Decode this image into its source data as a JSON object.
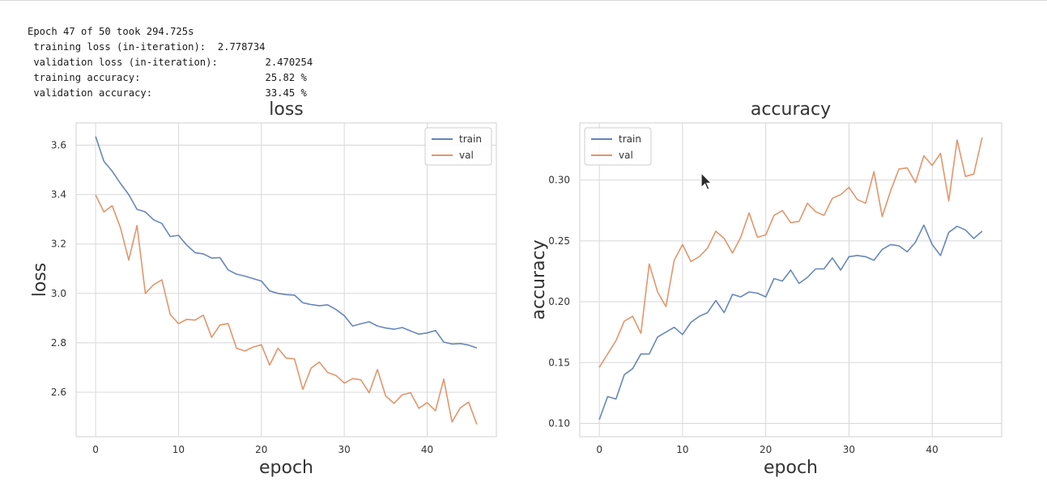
{
  "log": {
    "line1": "Epoch 47 of 50 took 294.725s",
    "line2": " training loss (in-iteration):  2.778734",
    "line3": " validation loss (in-iteration):        2.470254",
    "line4": " training accuracy:                     25.82 %",
    "line5": " validation accuracy:                   33.45 %"
  },
  "chart_data": [
    {
      "type": "line",
      "title": "loss",
      "xlabel": "epoch",
      "ylabel": "loss",
      "xlim": [
        -2.35,
        48.35
      ],
      "ylim": [
        2.42,
        3.69
      ],
      "xticks": [
        0,
        10,
        20,
        30,
        40
      ],
      "yticks": [
        2.6,
        2.8,
        3.0,
        3.2,
        3.4,
        3.6
      ],
      "ytick_labels": [
        "2.6",
        "2.8",
        "3.0",
        "3.2",
        "3.4",
        "3.6"
      ],
      "grid": true,
      "legend": "top-right",
      "x": [
        0,
        1,
        2,
        3,
        4,
        5,
        6,
        7,
        8,
        9,
        10,
        11,
        12,
        13,
        14,
        15,
        16,
        17,
        18,
        19,
        20,
        21,
        22,
        23,
        24,
        25,
        26,
        27,
        28,
        29,
        30,
        31,
        32,
        33,
        34,
        35,
        36,
        37,
        38,
        39,
        40,
        41,
        42,
        43,
        44,
        45,
        46
      ],
      "series": [
        {
          "name": "train",
          "color": "#4c72b0",
          "values": [
            3.635,
            3.535,
            3.495,
            3.445,
            3.4,
            3.34,
            3.33,
            3.298,
            3.283,
            3.23,
            3.235,
            3.195,
            3.165,
            3.16,
            3.143,
            3.145,
            3.095,
            3.078,
            3.07,
            3.06,
            3.05,
            3.01,
            3.0,
            2.995,
            2.993,
            2.962,
            2.955,
            2.95,
            2.954,
            2.935,
            2.91,
            2.868,
            2.877,
            2.885,
            2.868,
            2.86,
            2.855,
            2.862,
            2.848,
            2.835,
            2.84,
            2.85,
            2.803,
            2.795,
            2.797,
            2.791,
            2.779
          ]
        },
        {
          "name": "val",
          "color": "#dd8452",
          "values": [
            3.398,
            3.33,
            3.355,
            3.265,
            3.135,
            3.275,
            3.0,
            3.035,
            3.055,
            2.915,
            2.878,
            2.895,
            2.892,
            2.912,
            2.822,
            2.872,
            2.878,
            2.778,
            2.767,
            2.783,
            2.792,
            2.71,
            2.778,
            2.738,
            2.735,
            2.611,
            2.698,
            2.722,
            2.68,
            2.668,
            2.637,
            2.655,
            2.65,
            2.598,
            2.692,
            2.585,
            2.555,
            2.59,
            2.598,
            2.535,
            2.558,
            2.525,
            2.653,
            2.48,
            2.537,
            2.56,
            2.47
          ]
        }
      ]
    },
    {
      "type": "line",
      "title": "accuracy",
      "xlabel": "epoch",
      "ylabel": "accuracy",
      "xlim": [
        -2.35,
        48.35
      ],
      "ylim": [
        0.089,
        0.347
      ],
      "xticks": [
        0,
        10,
        20,
        30,
        40
      ],
      "yticks": [
        0.1,
        0.15,
        0.2,
        0.25,
        0.3
      ],
      "ytick_labels": [
        "0.10",
        "0.15",
        "0.20",
        "0.25",
        "0.30"
      ],
      "grid": true,
      "legend": "top-left",
      "x": [
        0,
        1,
        2,
        3,
        4,
        5,
        6,
        7,
        8,
        9,
        10,
        11,
        12,
        13,
        14,
        15,
        16,
        17,
        18,
        19,
        20,
        21,
        22,
        23,
        24,
        25,
        26,
        27,
        28,
        29,
        30,
        31,
        32,
        33,
        34,
        35,
        36,
        37,
        38,
        39,
        40,
        41,
        42,
        43,
        44,
        45,
        46
      ],
      "series": [
        {
          "name": "train",
          "color": "#4c72b0",
          "values": [
            0.103,
            0.122,
            0.12,
            0.14,
            0.145,
            0.157,
            0.157,
            0.171,
            0.175,
            0.179,
            0.173,
            0.183,
            0.188,
            0.191,
            0.201,
            0.191,
            0.206,
            0.204,
            0.208,
            0.207,
            0.204,
            0.219,
            0.217,
            0.226,
            0.215,
            0.22,
            0.227,
            0.227,
            0.236,
            0.226,
            0.237,
            0.238,
            0.237,
            0.234,
            0.243,
            0.247,
            0.246,
            0.241,
            0.249,
            0.263,
            0.247,
            0.238,
            0.257,
            0.262,
            0.259,
            0.252,
            0.258
          ]
        },
        {
          "name": "val",
          "color": "#dd8452",
          "values": [
            0.146,
            0.157,
            0.168,
            0.184,
            0.188,
            0.174,
            0.231,
            0.208,
            0.196,
            0.234,
            0.247,
            0.233,
            0.237,
            0.244,
            0.258,
            0.252,
            0.24,
            0.253,
            0.273,
            0.253,
            0.255,
            0.271,
            0.275,
            0.265,
            0.266,
            0.281,
            0.274,
            0.271,
            0.285,
            0.288,
            0.294,
            0.284,
            0.281,
            0.307,
            0.27,
            0.291,
            0.309,
            0.31,
            0.298,
            0.32,
            0.312,
            0.322,
            0.283,
            0.333,
            0.303,
            0.305,
            0.335
          ]
        }
      ]
    }
  ]
}
